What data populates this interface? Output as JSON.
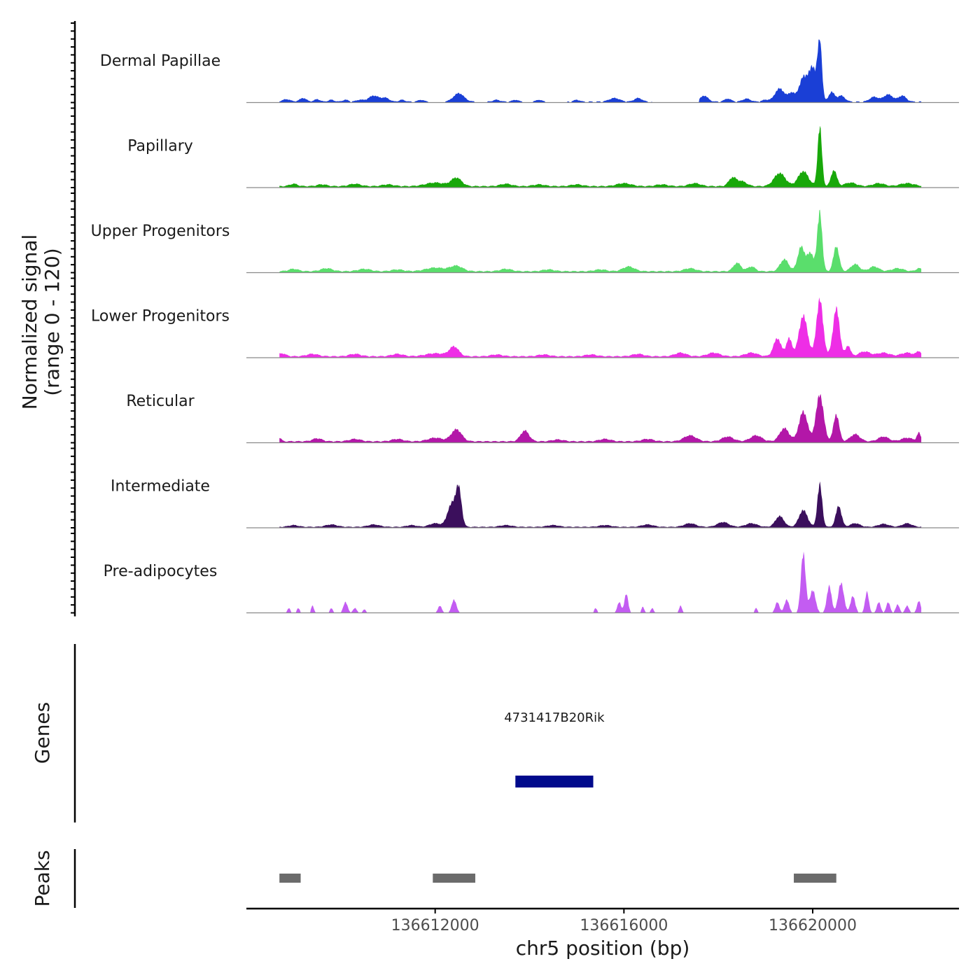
{
  "chart_data": {
    "type": "area",
    "title": "",
    "ylabel_line1": "Normalized signal",
    "ylabel_line2": "(range 0 - 120)",
    "ylim": [
      0,
      120
    ],
    "xlabel": "chr5 position (bp)",
    "xlim": [
      136608000,
      136623100
    ],
    "x_ticks": [
      136612000,
      136616000,
      136620000
    ],
    "x_tick_labels": [
      "136612000",
      "136616000",
      "136620000"
    ],
    "signal_range": [
      136608700,
      136622300
    ],
    "tracks": [
      {
        "name": "Dermal Papillae",
        "color": "#1a3fd6",
        "sparse": true,
        "base": 2,
        "peaks": [
          [
            136608850,
            80,
            4
          ],
          [
            136609200,
            70,
            6
          ],
          [
            136609500,
            60,
            4
          ],
          [
            136609800,
            60,
            3
          ],
          [
            136610100,
            60,
            3
          ],
          [
            136610400,
            70,
            3
          ],
          [
            136610700,
            110,
            10
          ],
          [
            136610950,
            80,
            6
          ],
          [
            136611300,
            60,
            3
          ],
          [
            136611700,
            60,
            3
          ],
          [
            136612500,
            110,
            14
          ],
          [
            136613300,
            70,
            3
          ],
          [
            136613700,
            60,
            3
          ],
          [
            136614200,
            60,
            3
          ],
          [
            136615000,
            60,
            3
          ],
          [
            136615800,
            110,
            6
          ],
          [
            136616300,
            80,
            6
          ],
          [
            136617700,
            80,
            10
          ],
          [
            136618200,
            70,
            5
          ],
          [
            136618600,
            80,
            5
          ],
          [
            136619000,
            70,
            3
          ],
          [
            136619300,
            100,
            22
          ],
          [
            136619550,
            70,
            14
          ],
          [
            136619800,
            90,
            40
          ],
          [
            136620000,
            80,
            55
          ],
          [
            136620150,
            45,
            100
          ],
          [
            136620400,
            60,
            16
          ],
          [
            136620600,
            80,
            10
          ],
          [
            136621300,
            90,
            8
          ],
          [
            136621600,
            100,
            12
          ],
          [
            136621900,
            80,
            10
          ]
        ],
        "gaps": [
          [
            136611900,
            136612200
          ],
          [
            136612900,
            136613100
          ],
          [
            136613900,
            136614000
          ],
          [
            136614400,
            136614800
          ],
          [
            136616600,
            136617600
          ]
        ]
      },
      {
        "name": "Papillary",
        "color": "#18a80a",
        "sparse": false,
        "base": 3,
        "peaks": [
          [
            136609000,
            80,
            4
          ],
          [
            136609600,
            100,
            3
          ],
          [
            136610300,
            120,
            4
          ],
          [
            136611000,
            120,
            3
          ],
          [
            136612000,
            200,
            6
          ],
          [
            136612450,
            110,
            14
          ],
          [
            136613500,
            120,
            4
          ],
          [
            136614200,
            120,
            3
          ],
          [
            136615000,
            120,
            3
          ],
          [
            136616000,
            150,
            5
          ],
          [
            136616800,
            120,
            3
          ],
          [
            136617500,
            120,
            5
          ],
          [
            136618300,
            80,
            14
          ],
          [
            136618500,
            100,
            8
          ],
          [
            136619300,
            120,
            22
          ],
          [
            136619800,
            110,
            25
          ],
          [
            136620150,
            45,
            100
          ],
          [
            136620450,
            60,
            27
          ],
          [
            136620800,
            120,
            6
          ],
          [
            136621400,
            120,
            5
          ],
          [
            136622000,
            150,
            5
          ]
        ],
        "gaps": []
      },
      {
        "name": "Upper Progenitors",
        "color": "#5ade6c",
        "sparse": false,
        "base": 3,
        "peaks": [
          [
            136609000,
            100,
            4
          ],
          [
            136609700,
            120,
            5
          ],
          [
            136610500,
            130,
            4
          ],
          [
            136611200,
            120,
            3
          ],
          [
            136612000,
            200,
            6
          ],
          [
            136612450,
            130,
            9
          ],
          [
            136613500,
            120,
            4
          ],
          [
            136614400,
            120,
            3
          ],
          [
            136615500,
            120,
            3
          ],
          [
            136616100,
            120,
            8
          ],
          [
            136617400,
            120,
            5
          ],
          [
            136618400,
            80,
            14
          ],
          [
            136618700,
            80,
            8
          ],
          [
            136619400,
            90,
            20
          ],
          [
            136619750,
            70,
            40
          ],
          [
            136619950,
            80,
            30
          ],
          [
            136620150,
            50,
            100
          ],
          [
            136620500,
            60,
            42
          ],
          [
            136620900,
            90,
            12
          ],
          [
            136621300,
            100,
            8
          ],
          [
            136621800,
            120,
            5
          ],
          [
            136622250,
            60,
            5
          ]
        ],
        "gaps": []
      },
      {
        "name": "Lower Progenitors",
        "color": "#ee2ee6",
        "sparse": false,
        "base": 3,
        "peaks": [
          [
            136608750,
            80,
            5
          ],
          [
            136609400,
            120,
            4
          ],
          [
            136610300,
            120,
            4
          ],
          [
            136611200,
            120,
            4
          ],
          [
            136612000,
            200,
            5
          ],
          [
            136612400,
            100,
            16
          ],
          [
            136613300,
            120,
            3
          ],
          [
            136614300,
            120,
            3
          ],
          [
            136615300,
            120,
            3
          ],
          [
            136616300,
            120,
            4
          ],
          [
            136617200,
            120,
            6
          ],
          [
            136617900,
            130,
            6
          ],
          [
            136618700,
            130,
            6
          ],
          [
            136619250,
            80,
            30
          ],
          [
            136619500,
            60,
            30
          ],
          [
            136619800,
            90,
            68
          ],
          [
            136620150,
            70,
            95
          ],
          [
            136620500,
            70,
            80
          ],
          [
            136620750,
            50,
            18
          ],
          [
            136621100,
            120,
            8
          ],
          [
            136621500,
            130,
            6
          ],
          [
            136622000,
            130,
            6
          ],
          [
            136622250,
            50,
            8
          ]
        ],
        "gaps": []
      },
      {
        "name": "Reticular",
        "color": "#b317a8",
        "sparse": false,
        "base": 3,
        "peaks": [
          [
            136608700,
            40,
            6
          ],
          [
            136609500,
            100,
            5
          ],
          [
            136610300,
            120,
            4
          ],
          [
            136611200,
            120,
            4
          ],
          [
            136612000,
            150,
            6
          ],
          [
            136612450,
            110,
            20
          ],
          [
            136613900,
            90,
            18
          ],
          [
            136614600,
            120,
            3
          ],
          [
            136615600,
            120,
            4
          ],
          [
            136616500,
            120,
            4
          ],
          [
            136617400,
            130,
            10
          ],
          [
            136618200,
            120,
            8
          ],
          [
            136618800,
            120,
            10
          ],
          [
            136619400,
            100,
            22
          ],
          [
            136619800,
            90,
            50
          ],
          [
            136620150,
            80,
            78
          ],
          [
            136620500,
            60,
            45
          ],
          [
            136620900,
            100,
            12
          ],
          [
            136621500,
            110,
            8
          ],
          [
            136622000,
            120,
            6
          ],
          [
            136622250,
            40,
            14
          ]
        ],
        "gaps": []
      },
      {
        "name": "Intermediate",
        "color": "#3b0f5c",
        "sparse": false,
        "base": 2,
        "peaks": [
          [
            136609000,
            100,
            3
          ],
          [
            136609800,
            120,
            4
          ],
          [
            136610700,
            120,
            4
          ],
          [
            136611500,
            100,
            3
          ],
          [
            136612000,
            120,
            6
          ],
          [
            136612350,
            90,
            38
          ],
          [
            136612500,
            60,
            60
          ],
          [
            136613500,
            120,
            3
          ],
          [
            136614500,
            120,
            3
          ],
          [
            136615600,
            120,
            3
          ],
          [
            136616500,
            120,
            4
          ],
          [
            136617400,
            120,
            6
          ],
          [
            136618100,
            120,
            8
          ],
          [
            136618700,
            120,
            6
          ],
          [
            136619300,
            90,
            18
          ],
          [
            136619800,
            90,
            28
          ],
          [
            136620150,
            50,
            72
          ],
          [
            136620550,
            60,
            35
          ],
          [
            136620900,
            100,
            6
          ],
          [
            136621500,
            110,
            5
          ],
          [
            136622000,
            100,
            6
          ]
        ],
        "gaps": []
      },
      {
        "name": "Pre-adipocytes",
        "color": "#c35cf2",
        "sparse": true,
        "base": 0,
        "peaks": [
          [
            136608900,
            30,
            8
          ],
          [
            136609100,
            30,
            8
          ],
          [
            136609400,
            30,
            12
          ],
          [
            136609800,
            30,
            8
          ],
          [
            136610100,
            45,
            18
          ],
          [
            136610300,
            40,
            8
          ],
          [
            136610500,
            30,
            6
          ],
          [
            136612100,
            40,
            12
          ],
          [
            136612400,
            50,
            22
          ],
          [
            136615400,
            30,
            8
          ],
          [
            136615900,
            40,
            18
          ],
          [
            136616050,
            40,
            32
          ],
          [
            136616400,
            30,
            10
          ],
          [
            136616600,
            30,
            8
          ],
          [
            136617200,
            30,
            12
          ],
          [
            136618800,
            30,
            8
          ],
          [
            136619250,
            45,
            18
          ],
          [
            136619450,
            50,
            22
          ],
          [
            136619800,
            50,
            100
          ],
          [
            136620000,
            60,
            38
          ],
          [
            136620350,
            50,
            45
          ],
          [
            136620600,
            60,
            50
          ],
          [
            136620850,
            50,
            28
          ],
          [
            136621150,
            40,
            35
          ],
          [
            136621400,
            40,
            18
          ],
          [
            136621600,
            40,
            18
          ],
          [
            136621800,
            40,
            14
          ],
          [
            136622000,
            40,
            12
          ],
          [
            136622250,
            40,
            20
          ]
        ],
        "gaps": [
          [
            136608700,
            136608750
          ],
          [
            136609250,
            136609350
          ],
          [
            136609550,
            136609700
          ],
          [
            136609900,
            136610000
          ],
          [
            136610650,
            136612000
          ],
          [
            136612750,
            136615350
          ],
          [
            136615500,
            136615800
          ],
          [
            136616200,
            136616350
          ],
          [
            136616750,
            136617100
          ],
          [
            136617350,
            136618750
          ],
          [
            136618950,
            136619150
          ]
        ]
      }
    ],
    "genes": {
      "axis_label": "Genes",
      "items": [
        {
          "name": "4731417B20Rik",
          "start": 136613700,
          "end": 136615350,
          "color": "#000a8c"
        }
      ]
    },
    "peaks": {
      "axis_label": "Peaks",
      "color": "#6b6b6b",
      "regions": [
        [
          136608700,
          136609150
        ],
        [
          136611950,
          136612850
        ],
        [
          136619600,
          136620500
        ]
      ]
    }
  }
}
